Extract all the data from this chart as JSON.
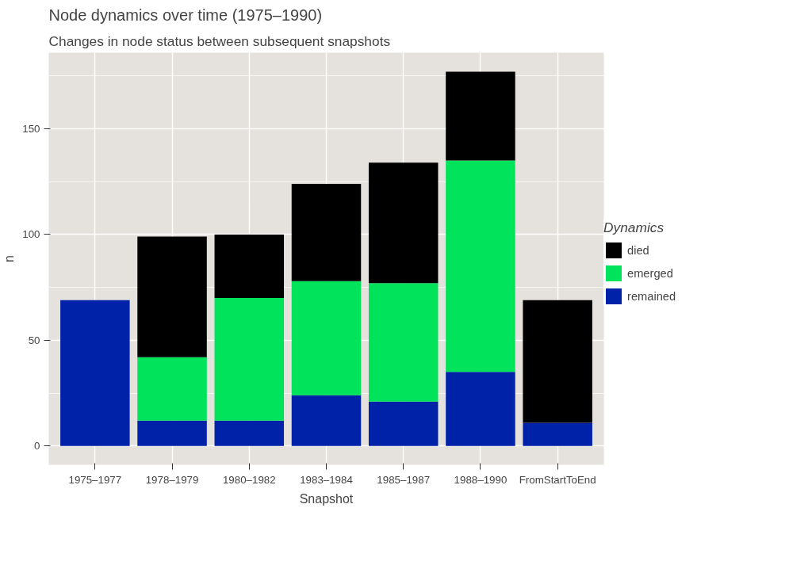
{
  "chart_data": {
    "type": "bar",
    "title": "Node dynamics over time (1975–1990)",
    "subtitle": "Changes in node status between subsequent snapshots",
    "xlabel": "Snapshot",
    "ylabel": "n",
    "legend_title": "Dynamics",
    "categories": [
      "1975–1977",
      "1978–1979",
      "1980–1982",
      "1983–1984",
      "1985–1987",
      "1988–1990",
      "FromStartToEnd"
    ],
    "stacked": true,
    "series": [
      {
        "name": "remained",
        "color": "#0022a8",
        "values": [
          69,
          12,
          12,
          24,
          21,
          35,
          11
        ]
      },
      {
        "name": "emerged",
        "color": "#00e35b",
        "values": [
          null,
          30,
          58,
          54,
          56,
          100,
          null
        ]
      },
      {
        "name": "died",
        "color": "#000000",
        "values": [
          null,
          57,
          30,
          46,
          57,
          42,
          58
        ]
      }
    ],
    "ylim": [
      -8.9,
      186
    ],
    "yticks": [
      0,
      50,
      100,
      150
    ],
    "grid": true,
    "legend": "right"
  }
}
